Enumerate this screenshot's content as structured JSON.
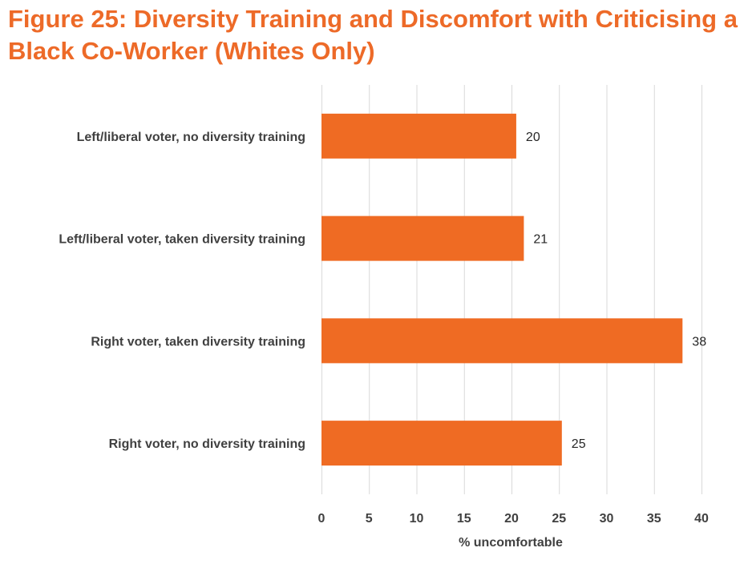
{
  "page": {
    "title": "Figure 25: Diversity Training and Discomfort with Criticising a Black Co-Worker (Whites Only)"
  },
  "colors": {
    "title": "#ED6A28",
    "bar": "#EF6B23",
    "grid": "#D9D9D9",
    "label": "#404040"
  },
  "chart_data": {
    "type": "bar",
    "orientation": "horizontal",
    "title": "Figure 25: Diversity Training and Discomfort with Criticising a Black Co-Worker (Whites Only)",
    "categories": [
      "Left/liberal voter, no diversity training",
      "Left/liberal voter, taken diversity training",
      "Right voter, taken diversity training",
      "Right voter, no diversity training"
    ],
    "values": [
      20.5,
      21.3,
      38,
      25.3
    ],
    "data_labels": [
      "20",
      "21",
      "38",
      "25"
    ],
    "xlabel": "% uncomfortable",
    "ylabel": "",
    "xlim": [
      0,
      40
    ],
    "xticks": [
      0,
      5,
      10,
      15,
      20,
      25,
      30,
      35,
      40
    ],
    "xtick_labels": [
      "0",
      "5",
      "10",
      "15",
      "20",
      "25",
      "30",
      "35",
      "40"
    ],
    "grid": "vertical",
    "legend": "none"
  }
}
